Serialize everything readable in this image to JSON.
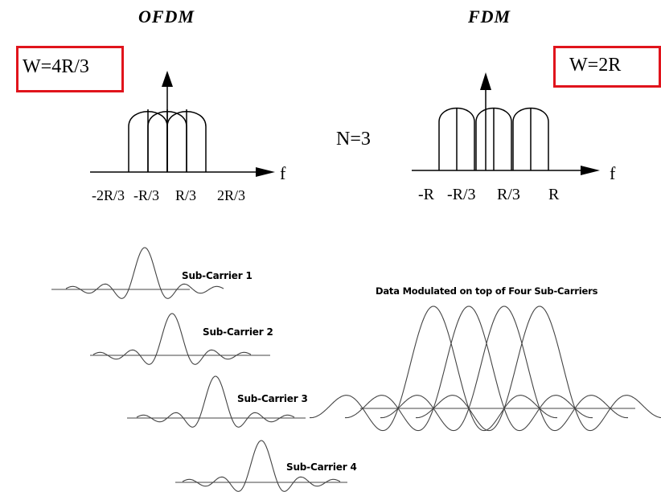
{
  "ofdm": {
    "title": "OFDM",
    "bandwidth": "W=4R/3",
    "axis_label": "f",
    "ticks": [
      "-2R/3",
      "-R/3",
      "R/3",
      "2R/3"
    ]
  },
  "fdm": {
    "title": "FDM",
    "bandwidth": "W=2R",
    "axis_label": "f",
    "ticks": [
      "-R",
      "-R/3",
      "R/3",
      "R"
    ]
  },
  "n_label": "N=3",
  "subcarriers": [
    "Sub-Carrier 1",
    "Sub-Carrier 2",
    "Sub-Carrier 3",
    "Sub-Carrier 4"
  ],
  "combined_title": "Data Modulated on top of Four Sub-Carriers",
  "colors": {
    "highlight_box": "#e0141c",
    "line": "#000000",
    "wave": "#444444"
  }
}
